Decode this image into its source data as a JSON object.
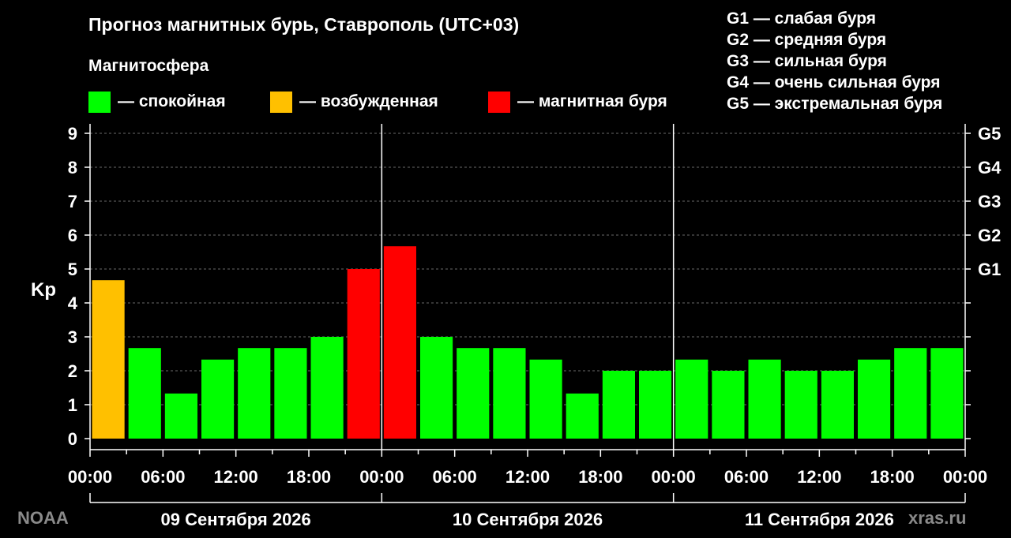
{
  "header": {
    "title": "Прогноз магнитных бурь, Ставрополь (UTC+03)",
    "magnetosphere_label": "Магнитосфера"
  },
  "legend": [
    {
      "label": "— спокойная",
      "color": "#00ff00"
    },
    {
      "label": "— возбужденная",
      "color": "#ffc000"
    },
    {
      "label": "— магнитная буря",
      "color": "#ff0000"
    }
  ],
  "storm_scale": [
    "G1 — слабая буря",
    "G2 — средняя буря",
    "G3 — сильная буря",
    "G4 — очень сильная буря",
    "G5 — экстремальная буря"
  ],
  "footer": {
    "source_left": "NOAA",
    "source_right": "xras.ru"
  },
  "chart_data": {
    "type": "bar",
    "ylabel": "Kp",
    "ylim": [
      0,
      9
    ],
    "y_ticks": [
      "0",
      "1",
      "2",
      "3",
      "4",
      "5",
      "6",
      "7",
      "8",
      "9"
    ],
    "right_axis_labels": [
      {
        "kp": 5,
        "label": "G1"
      },
      {
        "kp": 6,
        "label": "G2"
      },
      {
        "kp": 7,
        "label": "G3"
      },
      {
        "kp": 8,
        "label": "G4"
      },
      {
        "kp": 9,
        "label": "G5"
      }
    ],
    "x_tick_labels": [
      "00:00",
      "06:00",
      "12:00",
      "18:00",
      "00:00",
      "06:00",
      "12:00",
      "18:00",
      "00:00",
      "06:00",
      "12:00",
      "18:00",
      "00:00"
    ],
    "days": [
      "09 Сентября 2026",
      "10 Сентября 2026",
      "11 Сентября 2026"
    ],
    "interval_hours": 3,
    "grid": "horizontal dashed",
    "colors": {
      "quiet": "#00ff00",
      "active": "#ffc000",
      "storm": "#ff0000"
    },
    "values": [
      4.67,
      2.67,
      1.33,
      2.33,
      2.67,
      2.67,
      3.0,
      5.0,
      5.67,
      3.0,
      2.67,
      2.67,
      2.33,
      1.33,
      2.0,
      2.0,
      2.33,
      2.0,
      2.33,
      2.0,
      2.0,
      2.33,
      2.67,
      2.67
    ],
    "levels": [
      "active",
      "quiet",
      "quiet",
      "quiet",
      "quiet",
      "quiet",
      "quiet",
      "storm",
      "storm",
      "quiet",
      "quiet",
      "quiet",
      "quiet",
      "quiet",
      "quiet",
      "quiet",
      "quiet",
      "quiet",
      "quiet",
      "quiet",
      "quiet",
      "quiet",
      "quiet",
      "quiet"
    ]
  }
}
